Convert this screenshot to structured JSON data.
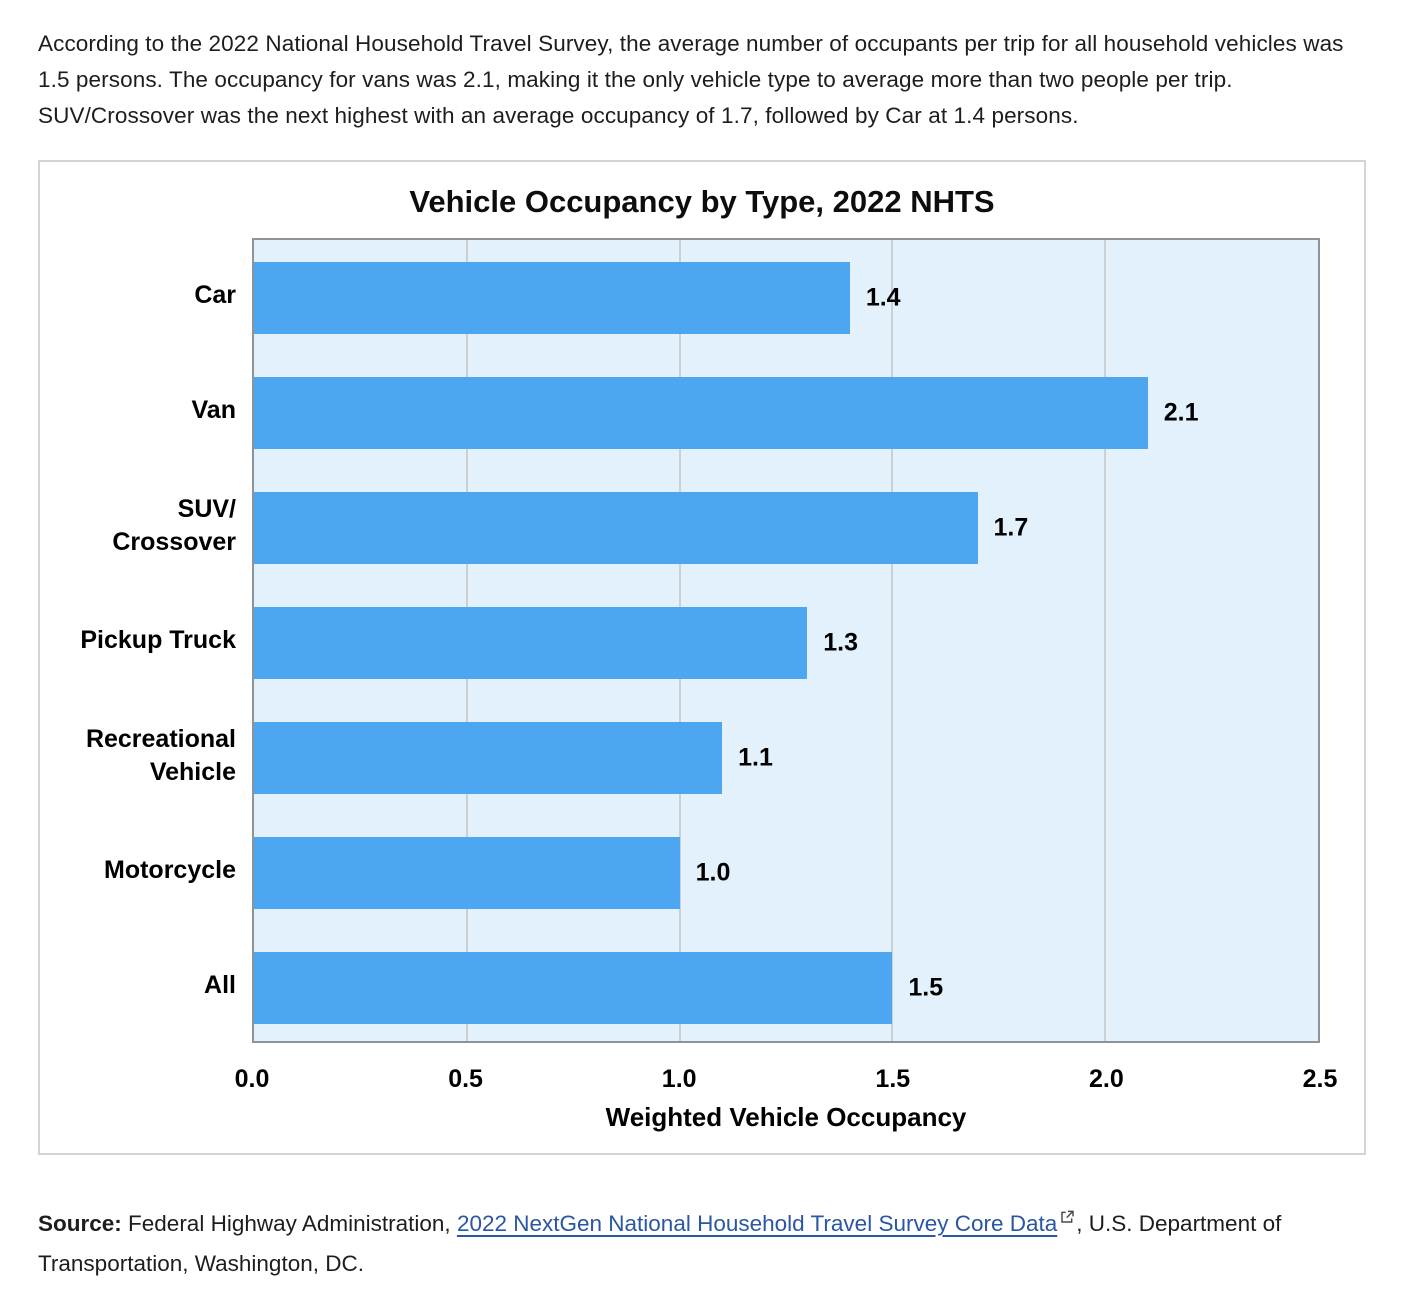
{
  "intro": {
    "text": "According to the 2022 National Household Travel Survey, the average number of occupants per trip for all household vehicles was 1.5 persons. The occupancy for vans was 2.1, making it the only vehicle type to average more than two people per trip. SUV/Crossover was the next highest with an average occupancy of 1.7, followed by Car at 1.4 persons."
  },
  "chart_data": {
    "type": "bar",
    "orientation": "horizontal",
    "title": "Vehicle Occupancy by Type, 2022 NHTS",
    "categories": [
      "Car",
      "Van",
      "SUV/\nCrossover",
      "Pickup Truck",
      "Recreational\nVehicle",
      "Motorcycle",
      "All"
    ],
    "values": [
      1.4,
      2.1,
      1.7,
      1.3,
      1.1,
      1.0,
      1.5
    ],
    "value_labels": [
      "1.4",
      "2.1",
      "1.7",
      "1.3",
      "1.1",
      "1.0",
      "1.5"
    ],
    "xlabel": "Weighted Vehicle Occupancy",
    "ylabel": "",
    "xlim": [
      0.0,
      2.5
    ],
    "xticks": [
      0.0,
      0.5,
      1.0,
      1.5,
      2.0,
      2.5
    ],
    "xtick_labels": [
      "0.0",
      "0.5",
      "1.0",
      "1.5",
      "2.0",
      "2.5"
    ],
    "grid": true,
    "legend": false,
    "colors": {
      "bar": "#4ca6f0",
      "plot_background": "#e2f1fc",
      "gridline": "#cbd0d5",
      "plot_border": "#8e9398",
      "label_text": "#000000"
    }
  },
  "source": {
    "prefix": "Source:",
    "before_link": " Federal Highway Administration, ",
    "link_text": "2022 NextGen National Household Travel Survey Core Data",
    "external_icon": "external-link-icon",
    "after_link": ", U.S. Department of Transportation, Washington, DC."
  }
}
